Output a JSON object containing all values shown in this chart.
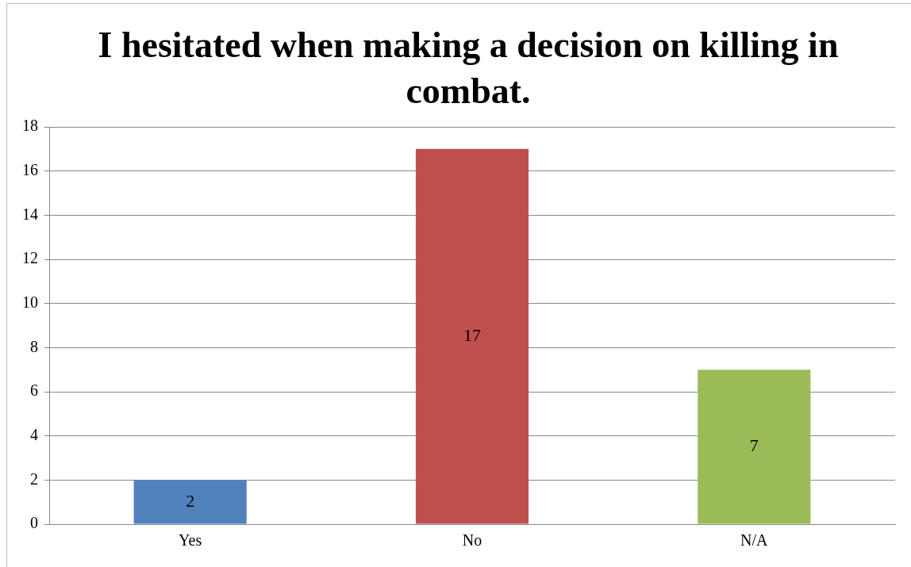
{
  "chart_data": {
    "type": "bar",
    "title": "I hesitated when making a decision on killing in combat.",
    "categories": [
      "Yes",
      "No",
      "N/A"
    ],
    "values": [
      2,
      17,
      7
    ],
    "colors": [
      "#4f81bd",
      "#c0504d",
      "#9bbb59"
    ],
    "ylim": [
      0,
      18
    ],
    "yticks": [
      0,
      2,
      4,
      6,
      8,
      10,
      12,
      14,
      16,
      18
    ],
    "grid": "y",
    "legend": false,
    "data_labels": true
  }
}
